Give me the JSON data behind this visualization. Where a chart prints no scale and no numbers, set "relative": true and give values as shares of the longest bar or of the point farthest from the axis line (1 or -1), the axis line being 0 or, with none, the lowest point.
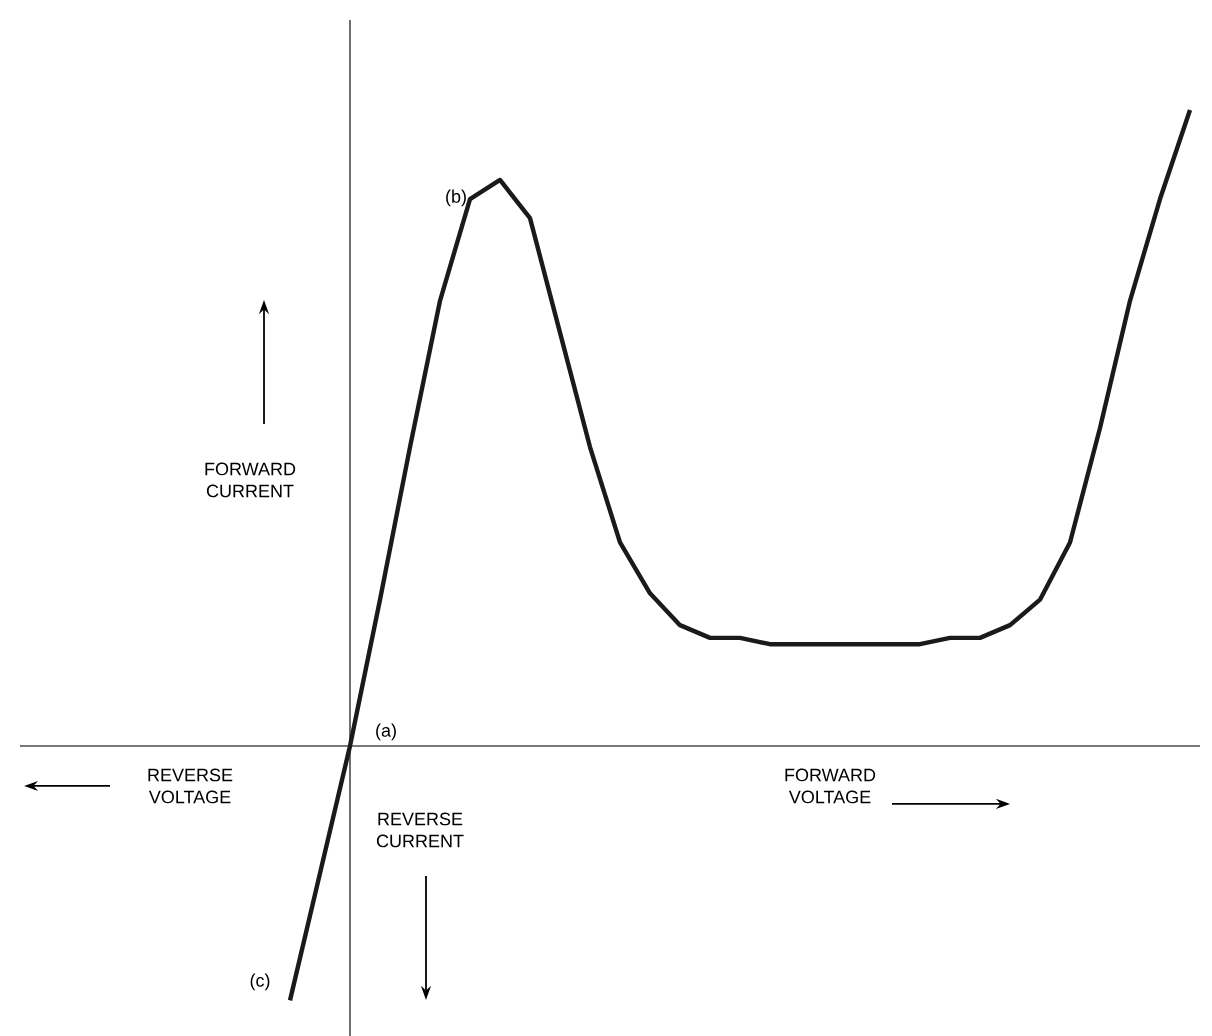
{
  "chart_data": {
    "type": "line",
    "relative": true,
    "color": "#1a1a1a",
    "line_style": "solid",
    "categories": [
      null,
      null,
      null,
      null,
      null,
      null,
      null,
      null,
      null,
      null,
      null,
      null,
      null,
      null,
      null,
      null,
      null,
      null,
      null,
      null,
      null,
      null,
      null,
      null,
      null,
      null,
      null,
      null,
      null,
      null,
      null
    ],
    "values": [
      -0.4,
      -0.2,
      0,
      0.23,
      0.47,
      0.7,
      0.86,
      0.89,
      0.83,
      0.65,
      0.47,
      0.32,
      0.24,
      0.19,
      0.17,
      0.17,
      0.16,
      0.16,
      0.16,
      0.16,
      0.16,
      0.16,
      0.17,
      0.17,
      0.19,
      0.23,
      0.32,
      0.5,
      0.7,
      0.86,
      1
    ],
    "annotations": [
      "FORWARD CURRENT",
      "REVERSE VOLTAGE",
      "FORWARD VOLTAGE",
      "REVERSE CURRENT",
      "(a)",
      "(b)",
      "(c)"
    ]
  }
}
